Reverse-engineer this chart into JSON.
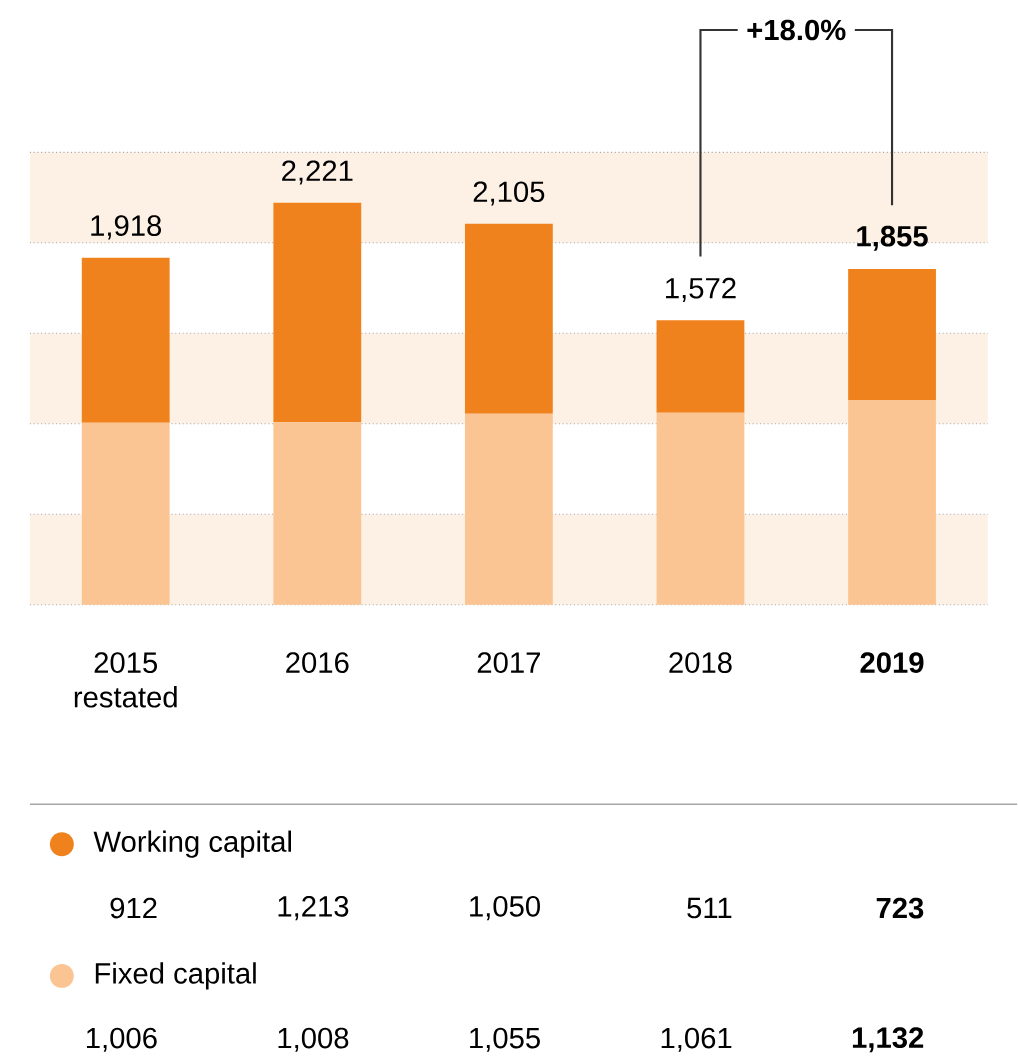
{
  "chart_data": {
    "type": "bar",
    "stacked": true,
    "categories": [
      "2015 restated",
      "2016",
      "2017",
      "2018",
      "2019"
    ],
    "series": [
      {
        "name": "Fixed capital",
        "color": "#fbc593",
        "values": [
          1006,
          1008,
          1055,
          1061,
          1132
        ],
        "value_labels": [
          "1,006",
          "1,008",
          "1,055",
          "1,061",
          "1,132"
        ]
      },
      {
        "name": "Working capital",
        "color": "#f0821e",
        "values": [
          912,
          1213,
          1050,
          511,
          723
        ],
        "value_labels": [
          "912",
          "1,213",
          "1,050",
          "511",
          "723"
        ]
      }
    ],
    "totals": [
      "1,918",
      "2,221",
      "2,105",
      "1,572",
      "1,855"
    ],
    "annotations": [
      "+18.0%"
    ],
    "ylim": [
      0,
      2500
    ],
    "yticks": [
      {
        "value": 0,
        "label": null
      },
      {
        "value": 500,
        "label": null
      },
      {
        "value": 1000,
        "label": null
      },
      {
        "value": 1500,
        "label": null
      },
      {
        "value": 2000,
        "label": null
      },
      {
        "value": 2500,
        "label": null
      }
    ],
    "grid": "y",
    "tick_labels": "x",
    "legend": "bottom",
    "bands": [
      {
        "axis": "y",
        "from": 0,
        "to": 500,
        "color": "#fdf1e5"
      },
      {
        "axis": "y",
        "from": 1000,
        "to": 1500,
        "color": "#fdf1e5"
      },
      {
        "axis": "y",
        "from": 2000,
        "to": 2500,
        "color": "#fdf1e5"
      }
    ]
  }
}
